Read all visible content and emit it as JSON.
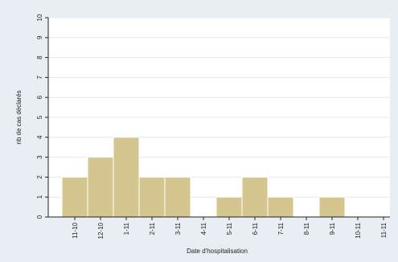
{
  "chart_data": {
    "type": "bar",
    "title": "",
    "xlabel": "Date d'hospitalisation",
    "ylabel": "nb de cas déclarés",
    "categories": [
      "11-10",
      "12-10",
      "1-11",
      "2-11",
      "3-11",
      "4-11",
      "5-11",
      "6-11",
      "7-11",
      "8-11",
      "9-11",
      "10-11",
      "11-11"
    ],
    "values": [
      2,
      3,
      4,
      2,
      2,
      0,
      1,
      2,
      1,
      0,
      1,
      0,
      0
    ],
    "ylim": [
      0,
      10
    ],
    "yticks": [
      "0",
      "1",
      "2",
      "3",
      "4",
      "5",
      "6",
      "7",
      "8",
      "9",
      "10"
    ],
    "grid": true,
    "bar_color": "#d4c68e",
    "bar_edge_color": "#ffffff",
    "background_color": "#e8eef3",
    "plot_background_color": "#ffffff"
  }
}
